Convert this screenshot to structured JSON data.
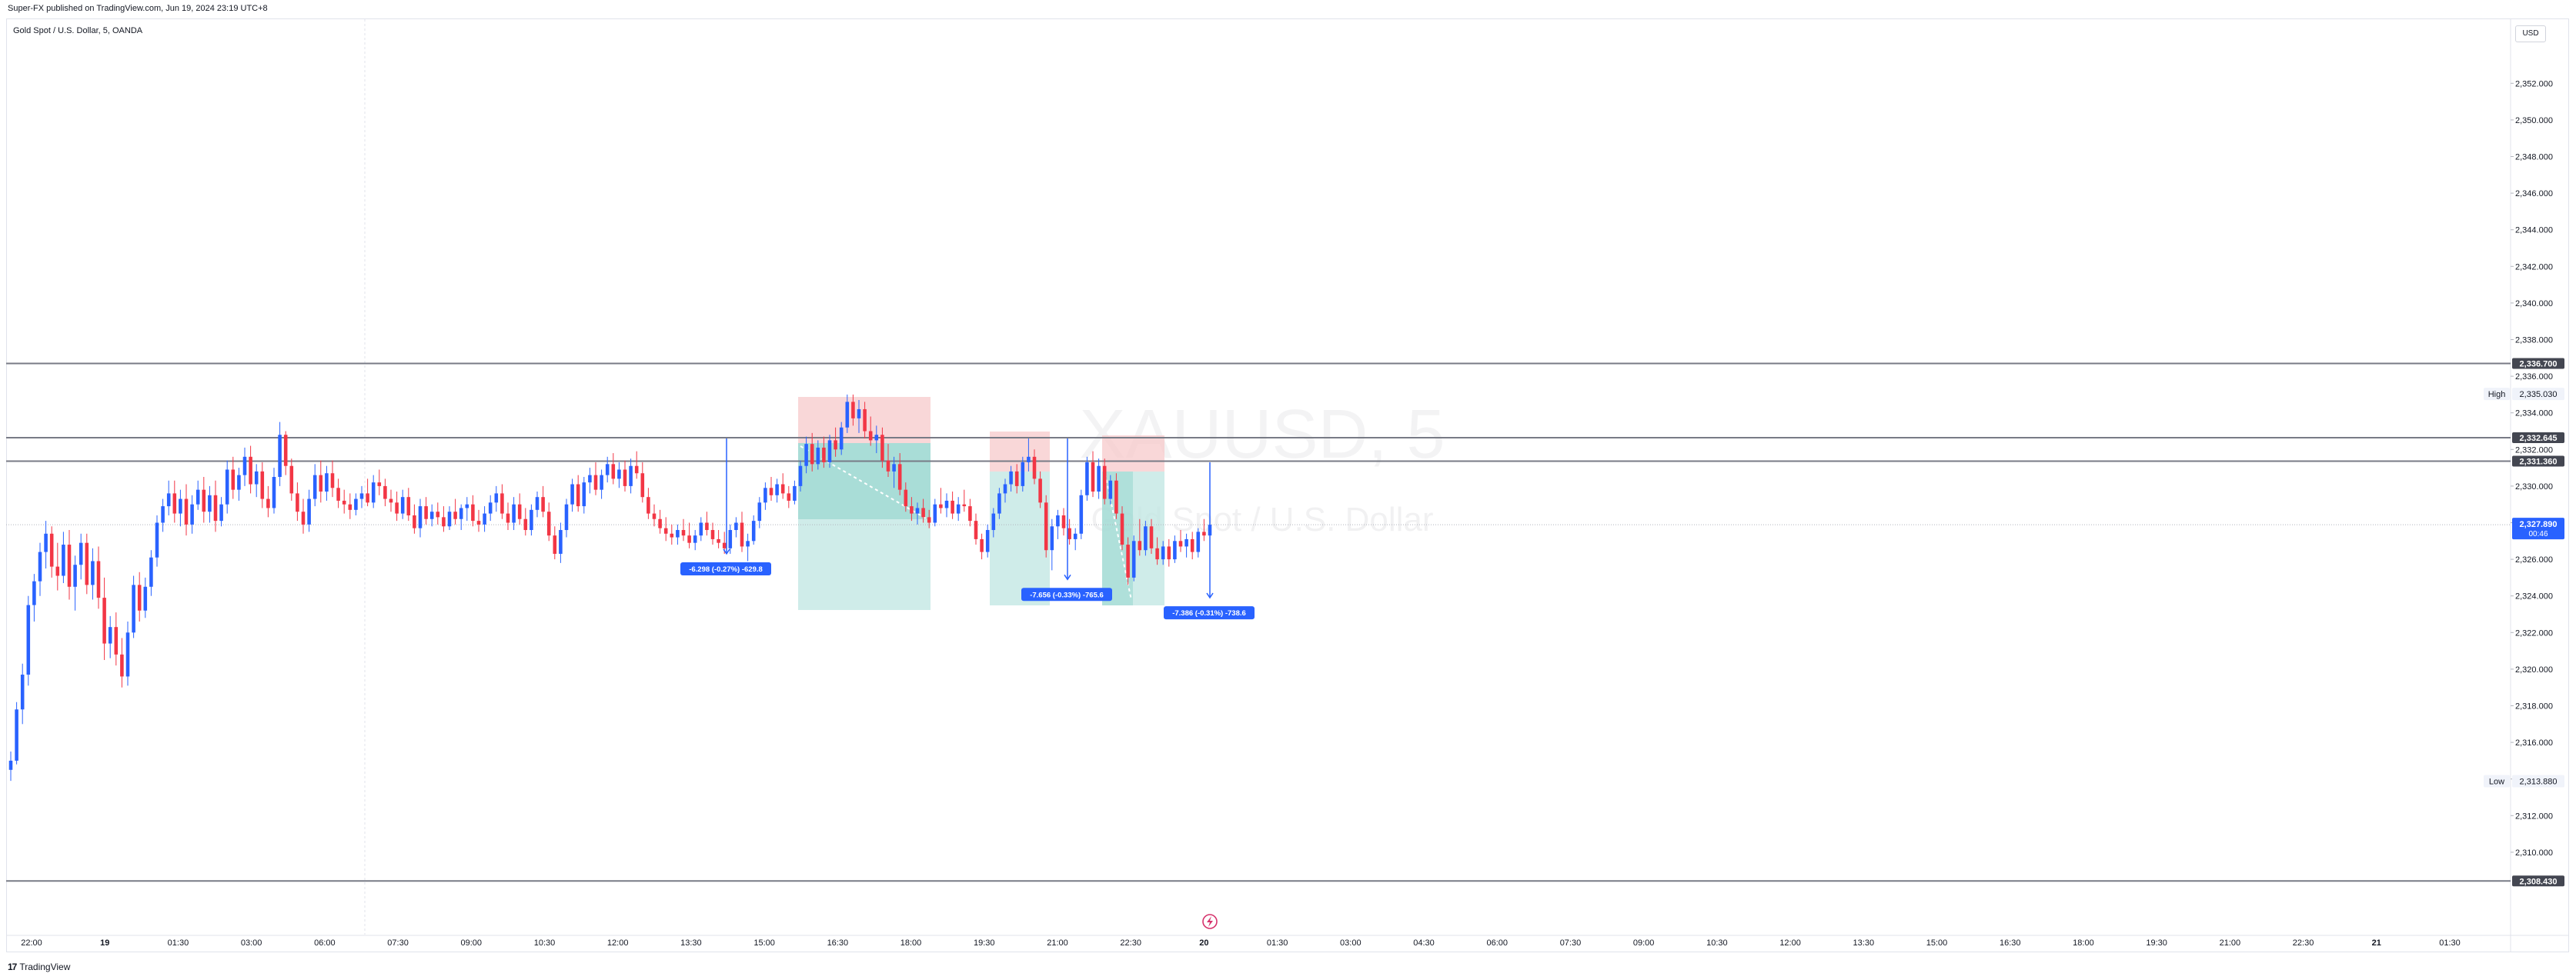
{
  "header": {
    "published": "Super-FX published on TradingView.com, Jun 19, 2024 23:19 UTC+8"
  },
  "chart": {
    "symbol_line": "Gold Spot / U.S. Dollar, 5, OANDA",
    "currency_button": "USD",
    "watermark_symbol": "XAUUSD, 5",
    "watermark_desc": "Gold Spot / U.S. Dollar",
    "footer_brand": "TradingView"
  },
  "colors": {
    "up": "#2962ff",
    "down": "#f23645",
    "stop_zone": "#f7c9cb",
    "target_zone": "#bfe6e2",
    "overlap_zone": "#8fd3cb",
    "measure": "#2962ff"
  },
  "chart_data": {
    "type": "candlestick",
    "title": "Gold Spot / U.S. Dollar, 5, OANDA",
    "ylim": [
      2305.5,
      2355.5
    ],
    "y_ticks": [
      "2,352.000",
      "2,350.000",
      "2,348.000",
      "2,346.000",
      "2,344.000",
      "2,342.000",
      "2,340.000",
      "2,338.000",
      "2,336.000",
      "2,334.000",
      "2,332.000",
      "2,330.000",
      "2,328.000",
      "2,326.000",
      "2,324.000",
      "2,322.000",
      "2,320.000",
      "2,318.000",
      "2,316.000",
      "2,314.000",
      "2,312.000",
      "2,310.000"
    ],
    "x_ticks": [
      "22:00",
      "19",
      "01:30",
      "03:00",
      "06:00",
      "07:30",
      "09:00",
      "10:30",
      "12:00",
      "13:30",
      "15:00",
      "16:30",
      "18:00",
      "19:30",
      "21:00",
      "22:30",
      "20",
      "01:30",
      "03:00",
      "04:30",
      "06:00",
      "07:30",
      "09:00",
      "10:30",
      "12:00",
      "13:30",
      "15:00",
      "16:30",
      "18:00",
      "19:30",
      "21:00",
      "22:30",
      "21",
      "01:30"
    ],
    "horizontal_lines": [
      {
        "price": 2336.7,
        "label": "2,336.700"
      },
      {
        "price": 2332.645,
        "label": "2,332.645"
      },
      {
        "price": 2331.36,
        "label": "2,331.360"
      },
      {
        "price": 2308.43,
        "label": "2,308.430"
      }
    ],
    "current_price": {
      "price": 2327.89,
      "label": "2,327.890",
      "countdown": "00:46"
    },
    "high": {
      "label": "High",
      "price": 2335.03,
      "value_label": "2,335.030"
    },
    "low": {
      "label": "Low",
      "price": 2313.88,
      "value_label": "2,313.880"
    },
    "measurements": [
      {
        "label": "-6.298 (-0.27%) -629.8"
      },
      {
        "label": "-7.656 (-0.33%) -765.6"
      },
      {
        "label": "-7.386 (-0.31%) -738.6"
      }
    ],
    "candles": [
      [
        2314.5,
        2315.5,
        2313.9,
        2315.0
      ],
      [
        2315.0,
        2318.2,
        2314.8,
        2317.8
      ],
      [
        2317.8,
        2320.3,
        2317.0,
        2319.7
      ],
      [
        2319.7,
        2324.0,
        2319.1,
        2323.5
      ],
      [
        2323.5,
        2325.2,
        2322.6,
        2324.8
      ],
      [
        2324.8,
        2326.9,
        2324.0,
        2326.4
      ],
      [
        2326.4,
        2328.1,
        2325.5,
        2327.4
      ],
      [
        2327.4,
        2327.8,
        2325.0,
        2325.6
      ],
      [
        2325.6,
        2326.9,
        2324.3,
        2325.1
      ],
      [
        2325.1,
        2327.5,
        2324.7,
        2326.8
      ],
      [
        2326.8,
        2327.6,
        2323.8,
        2324.5
      ],
      [
        2324.5,
        2326.2,
        2323.2,
        2325.7
      ],
      [
        2325.7,
        2327.4,
        2324.9,
        2326.9
      ],
      [
        2326.9,
        2327.4,
        2324.1,
        2324.6
      ],
      [
        2324.6,
        2326.6,
        2323.8,
        2325.9
      ],
      [
        2325.9,
        2326.7,
        2323.3,
        2323.9
      ],
      [
        2323.9,
        2325.0,
        2320.5,
        2321.4
      ],
      [
        2321.4,
        2322.9,
        2320.6,
        2322.3
      ],
      [
        2322.3,
        2323.1,
        2320.2,
        2320.8
      ],
      [
        2320.8,
        2321.7,
        2319.0,
        2319.6
      ],
      [
        2319.6,
        2322.6,
        2319.1,
        2322.0
      ],
      [
        2322.0,
        2325.1,
        2321.7,
        2324.6
      ],
      [
        2324.6,
        2325.3,
        2322.6,
        2323.2
      ],
      [
        2323.2,
        2325.0,
        2322.8,
        2324.5
      ],
      [
        2324.5,
        2326.5,
        2324.0,
        2326.1
      ],
      [
        2326.1,
        2328.4,
        2325.6,
        2328.0
      ],
      [
        2328.0,
        2329.3,
        2327.5,
        2328.9
      ],
      [
        2328.9,
        2330.3,
        2328.4,
        2329.6
      ],
      [
        2329.6,
        2330.3,
        2328.0,
        2328.5
      ],
      [
        2328.5,
        2329.8,
        2327.8,
        2329.3
      ],
      [
        2329.3,
        2330.1,
        2327.3,
        2327.9
      ],
      [
        2327.9,
        2329.5,
        2327.4,
        2329.0
      ],
      [
        2329.0,
        2330.3,
        2328.7,
        2329.8
      ],
      [
        2329.8,
        2330.5,
        2328.0,
        2328.6
      ],
      [
        2328.6,
        2330.0,
        2328.0,
        2329.5
      ],
      [
        2329.5,
        2330.3,
        2327.5,
        2328.1
      ],
      [
        2328.1,
        2329.4,
        2327.8,
        2329.0
      ],
      [
        2329.0,
        2331.4,
        2328.5,
        2330.9
      ],
      [
        2330.9,
        2331.6,
        2329.3,
        2329.8
      ],
      [
        2329.8,
        2331.0,
        2329.2,
        2330.6
      ],
      [
        2330.6,
        2332.1,
        2330.0,
        2331.6
      ],
      [
        2331.6,
        2332.2,
        2329.6,
        2330.1
      ],
      [
        2330.1,
        2331.2,
        2329.4,
        2330.8
      ],
      [
        2330.8,
        2331.3,
        2328.8,
        2329.3
      ],
      [
        2329.3,
        2330.0,
        2328.3,
        2328.8
      ],
      [
        2328.8,
        2331.0,
        2328.5,
        2330.5
      ],
      [
        2330.5,
        2333.5,
        2330.0,
        2332.8
      ],
      [
        2332.8,
        2333.0,
        2330.6,
        2331.1
      ],
      [
        2331.1,
        2331.5,
        2329.2,
        2329.6
      ],
      [
        2329.6,
        2330.2,
        2328.1,
        2328.6
      ],
      [
        2328.6,
        2329.3,
        2327.4,
        2327.9
      ],
      [
        2327.9,
        2329.8,
        2327.5,
        2329.3
      ],
      [
        2329.3,
        2331.2,
        2328.9,
        2330.6
      ],
      [
        2330.6,
        2331.4,
        2329.1,
        2329.7
      ],
      [
        2329.7,
        2331.1,
        2329.2,
        2330.7
      ],
      [
        2330.7,
        2331.4,
        2329.4,
        2329.9
      ],
      [
        2329.9,
        2330.4,
        2328.8,
        2329.2
      ],
      [
        2329.2,
        2329.8,
        2328.5,
        2329.0
      ],
      [
        2329.0,
        2329.6,
        2328.2,
        2328.7
      ],
      [
        2328.7,
        2329.6,
        2328.4,
        2329.3
      ],
      [
        2329.3,
        2330.0,
        2328.8,
        2329.6
      ],
      [
        2329.6,
        2330.4,
        2328.9,
        2329.1
      ],
      [
        2329.1,
        2330.6,
        2328.8,
        2330.2
      ],
      [
        2330.2,
        2330.9,
        2329.5,
        2330.0
      ],
      [
        2330.0,
        2330.4,
        2328.9,
        2329.3
      ],
      [
        2329.3,
        2329.8,
        2328.6,
        2329.1
      ],
      [
        2329.1,
        2329.7,
        2328.1,
        2328.5
      ],
      [
        2328.5,
        2329.8,
        2328.2,
        2329.4
      ],
      [
        2329.4,
        2329.9,
        2328.1,
        2328.4
      ],
      [
        2328.4,
        2329.0,
        2327.4,
        2327.7
      ],
      [
        2327.7,
        2329.3,
        2327.2,
        2328.9
      ],
      [
        2328.9,
        2329.4,
        2327.9,
        2328.2
      ],
      [
        2328.2,
        2329.0,
        2327.8,
        2328.6
      ],
      [
        2328.6,
        2329.1,
        2327.9,
        2328.3
      ],
      [
        2328.3,
        2328.9,
        2327.5,
        2327.8
      ],
      [
        2327.8,
        2328.9,
        2327.6,
        2328.6
      ],
      [
        2328.6,
        2329.3,
        2327.9,
        2328.2
      ],
      [
        2328.2,
        2329.0,
        2327.6,
        2328.8
      ],
      [
        2328.8,
        2329.4,
        2328.1,
        2329.0
      ],
      [
        2329.0,
        2329.5,
        2327.8,
        2328.1
      ],
      [
        2328.1,
        2328.7,
        2327.5,
        2327.9
      ],
      [
        2327.9,
        2328.9,
        2327.5,
        2328.5
      ],
      [
        2328.5,
        2329.5,
        2328.1,
        2329.1
      ],
      [
        2329.1,
        2330.0,
        2328.6,
        2329.6
      ],
      [
        2329.6,
        2330.1,
        2328.2,
        2328.5
      ],
      [
        2328.5,
        2329.1,
        2327.6,
        2328.0
      ],
      [
        2328.0,
        2329.4,
        2327.6,
        2329.0
      ],
      [
        2329.0,
        2329.6,
        2327.9,
        2328.2
      ],
      [
        2328.2,
        2328.8,
        2327.3,
        2327.6
      ],
      [
        2327.6,
        2329.0,
        2327.3,
        2328.7
      ],
      [
        2328.7,
        2329.7,
        2328.3,
        2329.4
      ],
      [
        2329.4,
        2330.0,
        2328.3,
        2328.6
      ],
      [
        2328.6,
        2329.1,
        2327.0,
        2327.3
      ],
      [
        2327.3,
        2327.8,
        2326.0,
        2326.3
      ],
      [
        2326.3,
        2328.0,
        2325.8,
        2327.6
      ],
      [
        2327.6,
        2329.3,
        2327.2,
        2329.0
      ],
      [
        2329.0,
        2330.4,
        2328.6,
        2330.1
      ],
      [
        2330.1,
        2330.6,
        2328.6,
        2328.9
      ],
      [
        2328.9,
        2330.5,
        2328.5,
        2330.2
      ],
      [
        2330.2,
        2331.0,
        2329.6,
        2330.6
      ],
      [
        2330.6,
        2331.3,
        2329.5,
        2329.8
      ],
      [
        2329.8,
        2330.9,
        2329.3,
        2330.6
      ],
      [
        2330.6,
        2331.6,
        2330.2,
        2331.2
      ],
      [
        2331.2,
        2331.8,
        2330.1,
        2330.4
      ],
      [
        2330.4,
        2331.3,
        2329.9,
        2330.9
      ],
      [
        2330.9,
        2331.4,
        2329.7,
        2330.0
      ],
      [
        2330.0,
        2331.5,
        2329.6,
        2331.1
      ],
      [
        2331.1,
        2331.9,
        2330.4,
        2330.7
      ],
      [
        2330.7,
        2331.3,
        2329.1,
        2329.4
      ],
      [
        2329.4,
        2329.9,
        2328.2,
        2328.5
      ],
      [
        2328.5,
        2329.0,
        2327.8,
        2328.2
      ],
      [
        2328.2,
        2328.7,
        2327.4,
        2327.7
      ],
      [
        2327.7,
        2328.3,
        2327.0,
        2327.4
      ],
      [
        2327.4,
        2327.9,
        2326.8,
        2327.2
      ],
      [
        2327.2,
        2327.9,
        2326.8,
        2327.6
      ],
      [
        2327.6,
        2328.2,
        2327.0,
        2327.3
      ],
      [
        2327.3,
        2328.0,
        2326.6,
        2326.9
      ],
      [
        2326.9,
        2327.6,
        2326.5,
        2327.3
      ],
      [
        2327.3,
        2328.3,
        2327.0,
        2328.0
      ],
      [
        2328.0,
        2328.6,
        2327.3,
        2327.6
      ],
      [
        2327.6,
        2328.0,
        2326.8,
        2327.1
      ],
      [
        2327.1,
        2327.6,
        2326.6,
        2326.9
      ],
      [
        2326.9,
        2327.5,
        2326.3,
        2326.6
      ],
      [
        2326.6,
        2327.9,
        2326.3,
        2327.6
      ],
      [
        2327.6,
        2328.3,
        2327.2,
        2328.0
      ],
      [
        2328.0,
        2328.6,
        2326.4,
        2326.7
      ],
      [
        2326.7,
        2327.4,
        2325.9,
        2327.0
      ],
      [
        2327.0,
        2328.4,
        2326.8,
        2328.1
      ],
      [
        2328.1,
        2329.4,
        2327.7,
        2329.1
      ],
      [
        2329.1,
        2330.2,
        2328.7,
        2329.9
      ],
      [
        2329.9,
        2330.5,
        2329.2,
        2329.5
      ],
      [
        2329.5,
        2330.4,
        2329.1,
        2330.1
      ],
      [
        2330.1,
        2330.7,
        2329.3,
        2329.6
      ],
      [
        2329.6,
        2330.0,
        2328.8,
        2329.2
      ],
      [
        2329.2,
        2330.3,
        2329.0,
        2330.0
      ],
      [
        2330.0,
        2331.4,
        2329.7,
        2331.1
      ],
      [
        2331.1,
        2332.7,
        2330.7,
        2332.3
      ],
      [
        2332.3,
        2332.9,
        2330.8,
        2331.2
      ],
      [
        2331.2,
        2332.5,
        2330.9,
        2332.1
      ],
      [
        2332.1,
        2332.7,
        2331.0,
        2331.3
      ],
      [
        2331.3,
        2332.8,
        2331.0,
        2332.5
      ],
      [
        2332.5,
        2333.2,
        2331.6,
        2332.0
      ],
      [
        2332.0,
        2333.5,
        2331.7,
        2333.2
      ],
      [
        2333.2,
        2335.0,
        2332.9,
        2334.6
      ],
      [
        2334.6,
        2335.0,
        2333.3,
        2333.7
      ],
      [
        2333.7,
        2334.7,
        2332.9,
        2334.2
      ],
      [
        2334.2,
        2334.6,
        2332.6,
        2333.0
      ],
      [
        2333.0,
        2333.8,
        2332.2,
        2332.5
      ],
      [
        2332.5,
        2333.3,
        2331.8,
        2332.8
      ],
      [
        2332.8,
        2333.2,
        2331.0,
        2331.4
      ],
      [
        2331.4,
        2332.3,
        2330.5,
        2330.8
      ],
      [
        2330.8,
        2331.6,
        2329.9,
        2331.2
      ],
      [
        2331.2,
        2331.8,
        2329.5,
        2329.8
      ],
      [
        2329.8,
        2330.2,
        2328.6,
        2328.9
      ],
      [
        2328.9,
        2329.4,
        2328.1,
        2328.5
      ],
      [
        2328.5,
        2329.1,
        2327.9,
        2328.8
      ],
      [
        2328.8,
        2329.3,
        2328.0,
        2328.3
      ],
      [
        2328.3,
        2328.7,
        2327.7,
        2328.0
      ],
      [
        2328.0,
        2329.3,
        2327.8,
        2329.0
      ],
      [
        2329.0,
        2329.9,
        2328.5,
        2328.8
      ],
      [
        2328.8,
        2329.6,
        2328.3,
        2329.2
      ],
      [
        2329.2,
        2329.7,
        2328.2,
        2328.5
      ],
      [
        2328.5,
        2329.4,
        2328.1,
        2329.0
      ],
      [
        2329.0,
        2329.8,
        2328.6,
        2328.9
      ],
      [
        2328.9,
        2329.3,
        2327.8,
        2328.1
      ],
      [
        2328.1,
        2328.5,
        2326.8,
        2327.1
      ],
      [
        2327.1,
        2327.4,
        2326.0,
        2326.4
      ],
      [
        2326.4,
        2327.9,
        2326.1,
        2327.6
      ],
      [
        2327.6,
        2328.8,
        2327.2,
        2328.5
      ],
      [
        2328.5,
        2329.9,
        2328.2,
        2329.6
      ],
      [
        2329.6,
        2330.4,
        2329.1,
        2330.1
      ],
      [
        2330.1,
        2331.1,
        2329.7,
        2330.8
      ],
      [
        2330.8,
        2331.2,
        2329.6,
        2330.0
      ],
      [
        2330.0,
        2331.6,
        2329.7,
        2331.3
      ],
      [
        2331.3,
        2332.6,
        2330.8,
        2331.6
      ],
      [
        2331.6,
        2332.0,
        2330.1,
        2330.4
      ],
      [
        2330.4,
        2330.8,
        2328.8,
        2329.1
      ],
      [
        2329.1,
        2329.5,
        2326.1,
        2326.5
      ],
      [
        2326.5,
        2328.2,
        2325.4,
        2327.8
      ],
      [
        2327.8,
        2328.7,
        2327.1,
        2328.4
      ],
      [
        2328.4,
        2328.8,
        2327.3,
        2327.7
      ],
      [
        2327.7,
        2328.2,
        2326.8,
        2327.1
      ],
      [
        2327.1,
        2327.7,
        2326.5,
        2327.4
      ],
      [
        2327.4,
        2329.8,
        2327.1,
        2329.5
      ],
      [
        2329.5,
        2331.6,
        2329.2,
        2331.3
      ],
      [
        2331.3,
        2331.9,
        2329.4,
        2329.7
      ],
      [
        2329.7,
        2331.5,
        2329.3,
        2331.1
      ],
      [
        2331.1,
        2331.5,
        2329.0,
        2329.3
      ],
      [
        2329.3,
        2330.6,
        2329.0,
        2330.3
      ],
      [
        2330.3,
        2330.7,
        2328.2,
        2328.5
      ],
      [
        2328.5,
        2328.9,
        2326.5,
        2326.8
      ],
      [
        2326.8,
        2327.2,
        2324.6,
        2325.0
      ],
      [
        2325.0,
        2327.3,
        2324.8,
        2327.0
      ],
      [
        2327.0,
        2328.2,
        2326.2,
        2326.5
      ],
      [
        2326.5,
        2328.1,
        2326.2,
        2327.8
      ],
      [
        2327.8,
        2328.2,
        2326.3,
        2326.6
      ],
      [
        2326.6,
        2327.2,
        2325.7,
        2326.0
      ],
      [
        2326.0,
        2327.0,
        2325.7,
        2326.7
      ],
      [
        2326.7,
        2327.1,
        2325.6,
        2326.0
      ],
      [
        2326.0,
        2327.3,
        2325.8,
        2327.0
      ],
      [
        2327.0,
        2327.6,
        2326.4,
        2326.7
      ],
      [
        2326.7,
        2327.4,
        2326.1,
        2327.1
      ],
      [
        2327.1,
        2327.5,
        2326.0,
        2326.4
      ],
      [
        2326.4,
        2327.7,
        2326.1,
        2327.5
      ],
      [
        2327.5,
        2328.2,
        2327.0,
        2327.3
      ],
      [
        2327.3,
        2328.3,
        2327.0,
        2327.89
      ]
    ]
  }
}
